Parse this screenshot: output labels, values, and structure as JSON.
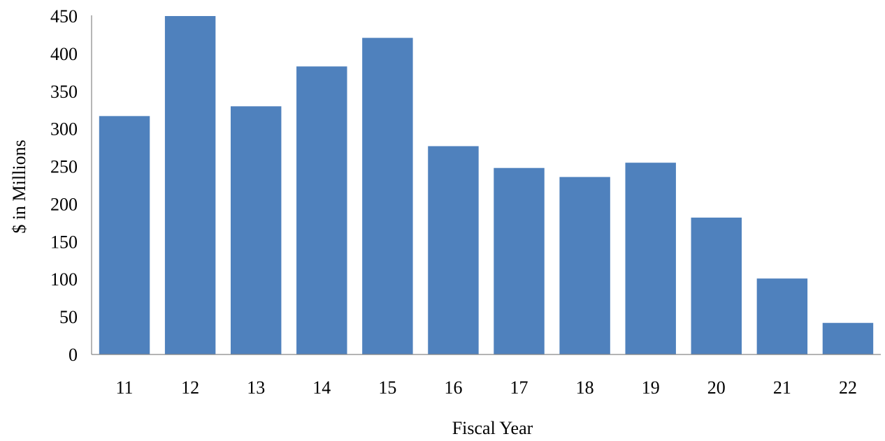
{
  "chart_data": {
    "type": "bar",
    "title": "",
    "xlabel": "Fiscal Year",
    "ylabel": "$ in Millions",
    "categories": [
      "11",
      "12",
      "13",
      "14",
      "15",
      "16",
      "17",
      "18",
      "19",
      "20",
      "21",
      "22"
    ],
    "values": [
      317,
      450,
      330,
      383,
      421,
      277,
      248,
      236,
      255,
      182,
      101,
      42
    ],
    "ylim": [
      0,
      450
    ],
    "yticks": [
      "0",
      "50",
      "100",
      "150",
      "200",
      "250",
      "300",
      "350",
      "400",
      "450"
    ],
    "grid": false,
    "legend": "none",
    "bar_color": "#4f81bd",
    "axis_color": "#868686"
  }
}
